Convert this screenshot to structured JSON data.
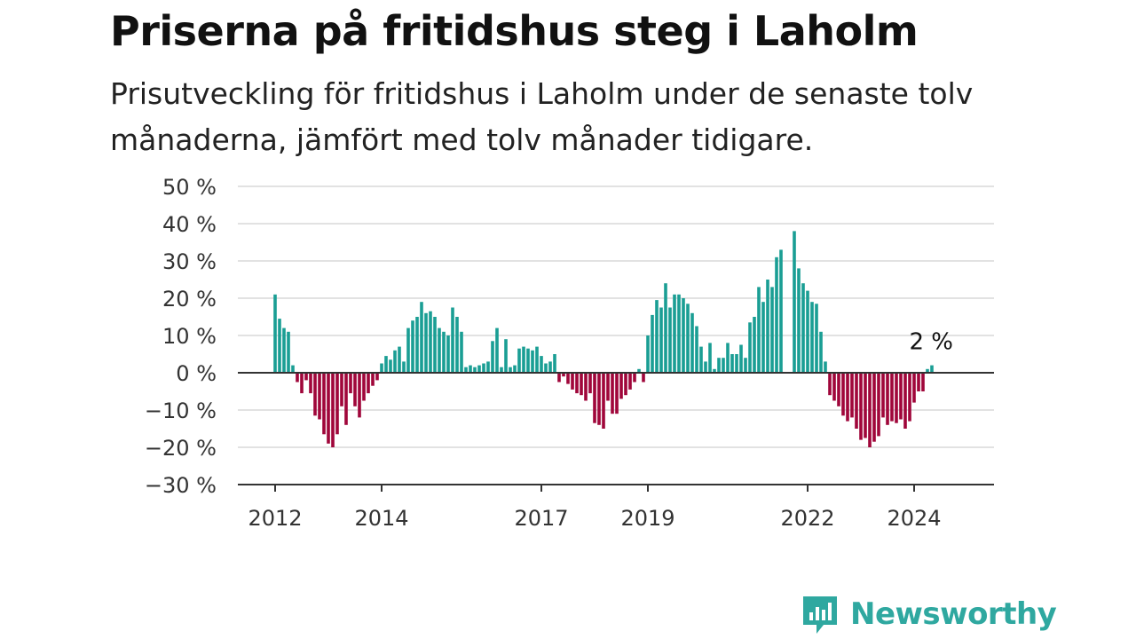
{
  "title": "Priserna på fritidshus steg i Laholm",
  "subtitle": "Prisutveckling för fritidshus i Laholm under de senaste tolv månaderna, jämfört med tolv månader tidigare.",
  "brand": {
    "name": "Newsworthy",
    "color": "#2fa8a0"
  },
  "colors": {
    "positive": "#1a9e94",
    "negative": "#a0063a"
  },
  "chart_data": {
    "type": "bar",
    "ylim": [
      -30,
      50
    ],
    "yticks": [
      "50 %",
      "40 %",
      "30 %",
      "20 %",
      "10 %",
      "0 %",
      "−10 %",
      "−20 %",
      "−30 %"
    ],
    "xticks": [
      "2012",
      "2014",
      "2017",
      "2019",
      "2022",
      "2024"
    ],
    "annotation": "2 %",
    "grid": true,
    "start": "2012-01",
    "values": [
      21,
      14.5,
      12,
      11,
      2,
      -2.5,
      -5.5,
      -2,
      -5.5,
      -11.5,
      -12.5,
      -16.5,
      -19,
      -20,
      -16.5,
      -9,
      -14,
      -5.5,
      -9,
      -12,
      -7.5,
      -5.5,
      -3.5,
      -2,
      2.5,
      4.5,
      3.5,
      6,
      7,
      3,
      12,
      14,
      15,
      19,
      16,
      16.5,
      15,
      12,
      11,
      10,
      17.5,
      15,
      11,
      1.5,
      2,
      1.5,
      2,
      2.5,
      3,
      8.5,
      12,
      1.5,
      9,
      1.5,
      2,
      6.5,
      7,
      6.5,
      6,
      7,
      4.5,
      2.5,
      3,
      5,
      -2.5,
      -1,
      -3,
      -4.5,
      -5.5,
      -6,
      -7.5,
      -5.5,
      -13.5,
      -14,
      -15,
      -7.5,
      -11,
      -11,
      -7,
      -6,
      -4.5,
      -2.5,
      1,
      -2.5,
      10,
      15.5,
      19.5,
      17.5,
      24,
      17.5,
      21,
      21,
      20,
      18.5,
      16,
      12.5,
      7,
      3,
      8,
      1,
      4,
      4,
      8,
      5,
      5,
      7.5,
      4,
      13.5,
      15,
      23,
      19,
      25,
      23,
      31,
      33,
      0,
      0,
      38,
      28,
      24,
      22,
      19,
      18.5,
      11,
      3,
      -6,
      -7.5,
      -9,
      -11.5,
      -13,
      -12,
      -15,
      -18,
      -17.5,
      -20,
      -18.5,
      -17,
      -12,
      -14,
      -13,
      -13.5,
      -12.5,
      -15,
      -13,
      -8,
      -5,
      -5,
      1,
      2
    ]
  }
}
